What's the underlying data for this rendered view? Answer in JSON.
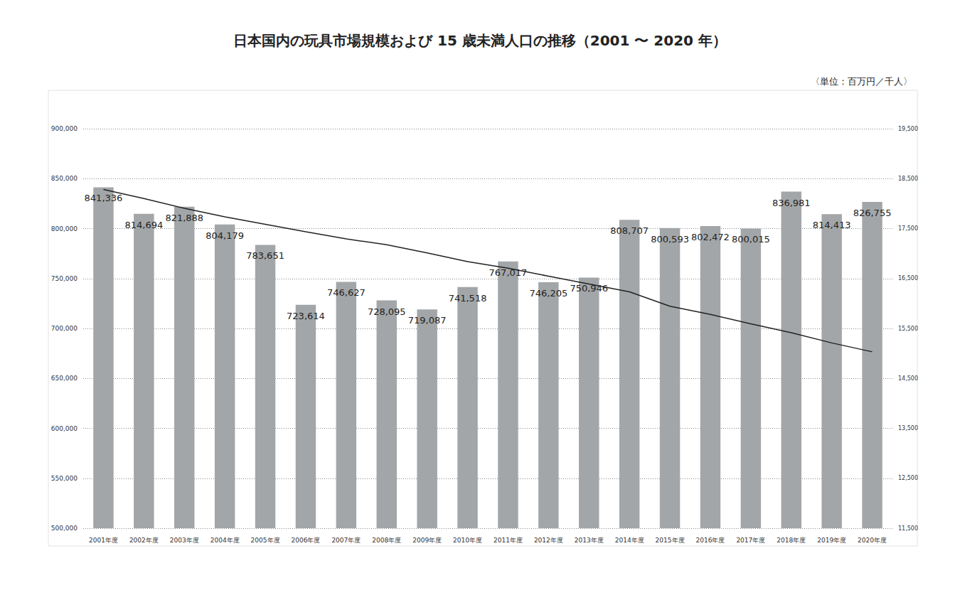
{
  "chart_data": {
    "type": "bar",
    "title": "日本国内の玩具市場規模および 15 歳未満人口の推移（2001 〜 2020 年）",
    "subtitle": "〈単位：百万円／千人〉",
    "categories": [
      "2001年度",
      "2002年度",
      "2003年度",
      "2004年度",
      "2005年度",
      "2006年度",
      "2007年度",
      "2008年度",
      "2009年度",
      "2010年度",
      "2011年度",
      "2012年度",
      "2013年度",
      "2014年度",
      "2015年度",
      "2016年度",
      "2017年度",
      "2018年度",
      "2019年度",
      "2020年度"
    ],
    "series": [
      {
        "type": "bar",
        "color": "#a3a6a8",
        "data_labels": true,
        "values": [
          841336,
          814694,
          821888,
          804179,
          783651,
          723614,
          746627,
          728095,
          719087,
          741518,
          767017,
          746205,
          750946,
          808707,
          800593,
          802472,
          800015,
          836981,
          814413,
          826755
        ],
        "value_labels": [
          "841,336",
          "814,694",
          "821,888",
          "804,179",
          "783,651",
          "723,614",
          "746,627",
          "728,095",
          "719,087",
          "741,518",
          "767,017",
          "746,205",
          "750,946",
          "808,707",
          "800,593",
          "802,472",
          "800,015",
          "836,981",
          "814,413",
          "826,755"
        ]
      },
      {
        "type": "line",
        "axis": "y2",
        "color": "#222222",
        "marker": "none",
        "values": [
          18283,
          18102,
          17905,
          17734,
          17585,
          17435,
          17293,
          17176,
          17011,
          16839,
          16705,
          16547,
          16390,
          16233,
          15945,
          15780,
          15592,
          15415,
          15210,
          15032
        ]
      }
    ],
    "ylim": [
      500000,
      900000
    ],
    "yticks": [
      {
        "value": 500000,
        "label": "500,000"
      },
      {
        "value": 550000,
        "label": "550,000"
      },
      {
        "value": 600000,
        "label": "600,000"
      },
      {
        "value": 650000,
        "label": "650,000"
      },
      {
        "value": 700000,
        "label": "700,000"
      },
      {
        "value": 750000,
        "label": "750,000"
      },
      {
        "value": 800000,
        "label": "800,000"
      },
      {
        "value": 850000,
        "label": "850,000"
      },
      {
        "value": 900000,
        "label": "900,000"
      }
    ],
    "y2lim": [
      11500,
      19500
    ],
    "y2ticks": [
      {
        "value": 11500,
        "label": "11,500"
      },
      {
        "value": 12500,
        "label": "12,500"
      },
      {
        "value": 13500,
        "label": "13,500"
      },
      {
        "value": 14500,
        "label": "14,500"
      },
      {
        "value": 15500,
        "label": "15,500"
      },
      {
        "value": 16500,
        "label": "16,500"
      },
      {
        "value": 17500,
        "label": "17,500"
      },
      {
        "value": 18500,
        "label": "18,500"
      },
      {
        "value": 19500,
        "label": "19,500"
      }
    ],
    "grid": true
  }
}
